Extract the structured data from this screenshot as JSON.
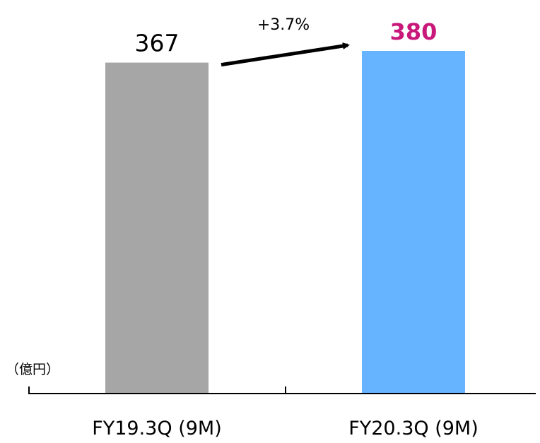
{
  "chart_data": {
    "type": "bar",
    "categories": [
      "FY19.3Q (9M)",
      "FY20.3Q (9M)"
    ],
    "values": [
      367,
      380
    ],
    "value_labels": [
      "367",
      "380"
    ],
    "ylim": [
      0,
      380
    ],
    "unit_label": "（億円）",
    "change_annotation": "+3.7%",
    "grid": false,
    "colors": {
      "bars": [
        "#a6a6a6",
        "#66b3ff"
      ],
      "value_labels": [
        "#000000",
        "#c8197a"
      ],
      "axis": "#000000",
      "arrow": "#000000"
    }
  }
}
